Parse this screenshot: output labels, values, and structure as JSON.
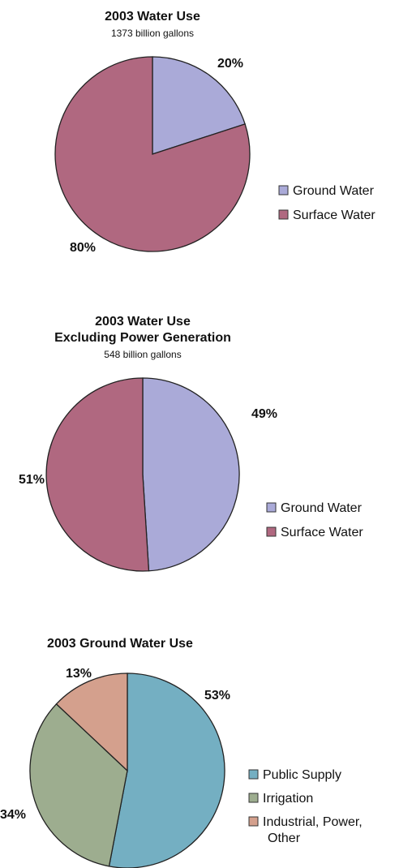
{
  "chart_data": [
    {
      "type": "pie",
      "title": "2003 Water Use",
      "subtitle": "1373 billion gallons",
      "slices": [
        {
          "label": "Ground Water",
          "value": 20,
          "value_label": "20%",
          "color": "#aaaad8"
        },
        {
          "label": "Surface Water",
          "value": 80,
          "value_label": "80%",
          "color": "#b06880"
        }
      ],
      "legend_position": "right"
    },
    {
      "type": "pie",
      "title": "2003 Water Use",
      "title_line2": "Excluding Power Generation",
      "subtitle": "548 billion gallons",
      "slices": [
        {
          "label": "Ground Water",
          "value": 49,
          "value_label": "49%",
          "color": "#aaaad8"
        },
        {
          "label": "Surface Water",
          "value": 51,
          "value_label": "51%",
          "color": "#b06880"
        }
      ],
      "legend_position": "right"
    },
    {
      "type": "pie",
      "title": "2003 Ground Water Use",
      "slices": [
        {
          "label": "Public Supply",
          "value": 53,
          "value_label": "53%",
          "color": "#74afc2"
        },
        {
          "label": "Irrigation",
          "value": 34,
          "value_label": "34%",
          "color": "#9dad8f"
        },
        {
          "label": "Industrial, Power,",
          "label_line2": "Other",
          "value": 13,
          "value_label": "13%",
          "color": "#d4a08d"
        }
      ],
      "legend_position": "right"
    }
  ]
}
